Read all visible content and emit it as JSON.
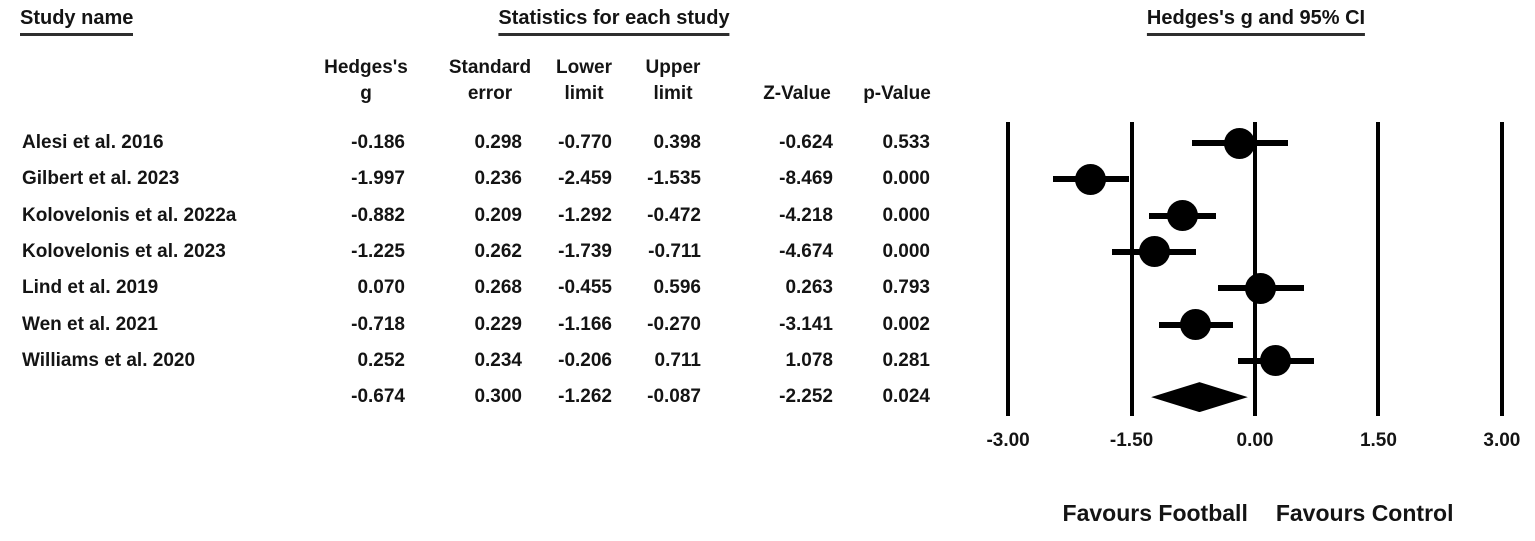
{
  "titles": {
    "study_name": "Study name",
    "stats": "Statistics for each study",
    "plot": "Hedges's g and 95% CI"
  },
  "columns": [
    {
      "l1": "Hedges's",
      "l2": "g"
    },
    {
      "l1": "Standard",
      "l2": "error"
    },
    {
      "l1": "Lower",
      "l2": "limit"
    },
    {
      "l1": "Upper",
      "l2": "limit"
    },
    {
      "l1": "",
      "l2": "Z-Value"
    },
    {
      "l1": "",
      "l2": "p-Value"
    }
  ],
  "table": {
    "rows": [
      {
        "name": "Alesi et al. 2016",
        "g": "-0.186",
        "se": "0.298",
        "lower": "-0.770",
        "upper": "0.398",
        "z": "-0.624",
        "p": "0.533"
      },
      {
        "name": "Gilbert et al. 2023",
        "g": "-1.997",
        "se": "0.236",
        "lower": "-2.459",
        "upper": "-1.535",
        "z": "-8.469",
        "p": "0.000"
      },
      {
        "name": "Kolovelonis et al. 2022a",
        "g": "-0.882",
        "se": "0.209",
        "lower": "-1.292",
        "upper": "-0.472",
        "z": "-4.218",
        "p": "0.000"
      },
      {
        "name": "Kolovelonis et al. 2023",
        "g": "-1.225",
        "se": "0.262",
        "lower": "-1.739",
        "upper": "-0.711",
        "z": "-4.674",
        "p": "0.000"
      },
      {
        "name": "Lind et al. 2019",
        "g": "0.070",
        "se": "0.268",
        "lower": "-0.455",
        "upper": "0.596",
        "z": "0.263",
        "p": "0.793"
      },
      {
        "name": "Wen et al. 2021",
        "g": "-0.718",
        "se": "0.229",
        "lower": "-1.166",
        "upper": "-0.270",
        "z": "-3.141",
        "p": "0.002"
      },
      {
        "name": "Williams et al. 2020",
        "g": "0.252",
        "se": "0.234",
        "lower": "-0.206",
        "upper": "0.711",
        "z": "1.078",
        "p": "0.281"
      },
      {
        "name": "",
        "g": "-0.674",
        "se": "0.300",
        "lower": "-1.262",
        "upper": "-0.087",
        "z": "-2.252",
        "p": "0.024"
      }
    ]
  },
  "footer": {
    "left": "Favours Football",
    "right": "Favours Control"
  },
  "chart_data": {
    "type": "forest",
    "title": "Hedges's g and 95% CI",
    "effect_measure": "Hedges's g",
    "xlim": [
      -3.3,
      3.3
    ],
    "axis_ticks": [
      -3.0,
      -1.5,
      0.0,
      1.5,
      3.0
    ],
    "tick_labels": [
      "-3.00",
      "-1.50",
      "0.00",
      "1.50",
      "3.00"
    ],
    "favours_left": "Favours Football",
    "favours_right": "Favours Control",
    "marker_color": "#000000",
    "studies": [
      {
        "name": "Alesi et al. 2016",
        "g": -0.186,
        "se": 0.298,
        "lower": -0.77,
        "upper": 0.398,
        "z": -0.624,
        "p": 0.533
      },
      {
        "name": "Gilbert et al. 2023",
        "g": -1.997,
        "se": 0.236,
        "lower": -2.459,
        "upper": -1.535,
        "z": -8.469,
        "p": 0.0
      },
      {
        "name": "Kolovelonis et al. 2022a",
        "g": -0.882,
        "se": 0.209,
        "lower": -1.292,
        "upper": -0.472,
        "z": -4.218,
        "p": 0.0
      },
      {
        "name": "Kolovelonis et al. 2023",
        "g": -1.225,
        "se": 0.262,
        "lower": -1.739,
        "upper": -0.711,
        "z": -4.674,
        "p": 0.0
      },
      {
        "name": "Lind et al. 2019",
        "g": 0.07,
        "se": 0.268,
        "lower": -0.455,
        "upper": 0.596,
        "z": 0.263,
        "p": 0.793
      },
      {
        "name": "Wen et al. 2021",
        "g": -0.718,
        "se": 0.229,
        "lower": -1.166,
        "upper": -0.27,
        "z": -3.141,
        "p": 0.002
      },
      {
        "name": "Williams et al. 2020",
        "g": 0.252,
        "se": 0.234,
        "lower": -0.206,
        "upper": 0.711,
        "z": 1.078,
        "p": 0.281
      }
    ],
    "overall": {
      "g": -0.674,
      "se": 0.3,
      "lower": -1.262,
      "upper": -0.087,
      "z": -2.252,
      "p": 0.024
    }
  }
}
